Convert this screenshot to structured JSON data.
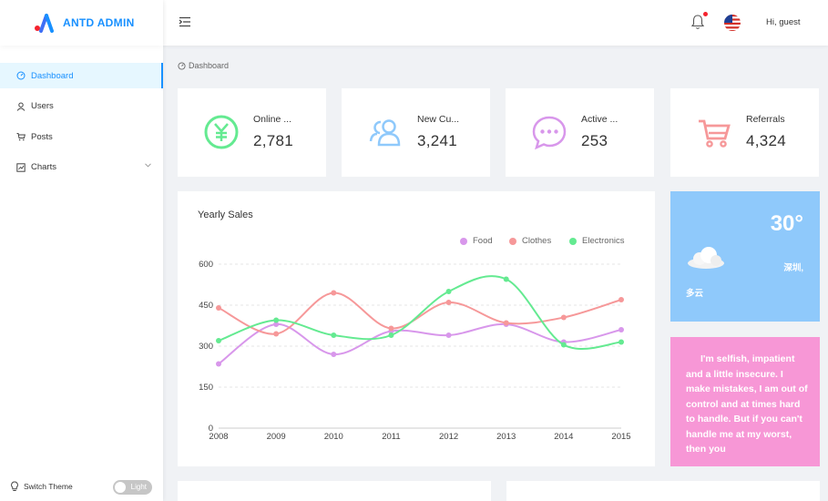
{
  "app": {
    "logo_text": "ANTD ADMIN"
  },
  "sidebar": {
    "items": [
      {
        "label": "Dashboard",
        "icon": "dashboard-icon",
        "active": true
      },
      {
        "label": "Users",
        "icon": "user-icon"
      },
      {
        "label": "Posts",
        "icon": "shopping-cart-icon"
      },
      {
        "label": "Charts",
        "icon": "chart-icon",
        "has_submenu": true
      }
    ],
    "footer": {
      "label": "Switch Theme",
      "toggle_label": "Light"
    }
  },
  "header": {
    "greeting": "Hi, guest",
    "notification_badge": true,
    "language_flag": "us-flag-icon"
  },
  "breadcrumb": {
    "label": "Dashboard"
  },
  "stats": [
    {
      "title": "Online ...",
      "value": "2,781",
      "icon": "pay-circle-icon",
      "color": "#64ea91"
    },
    {
      "title": "New Cu...",
      "value": "3,241",
      "icon": "team-icon",
      "color": "#8fc9fb"
    },
    {
      "title": "Active ...",
      "value": "253",
      "icon": "message-icon",
      "color": "#d897eb"
    },
    {
      "title": "Referrals",
      "value": "4,324",
      "icon": "shopping-cart-icon",
      "color": "#f69899"
    }
  ],
  "sales": {
    "title": "Yearly Sales",
    "legend": [
      {
        "name": "Food",
        "color": "#d897eb"
      },
      {
        "name": "Clothes",
        "color": "#f69899"
      },
      {
        "name": "Electronics",
        "color": "#64ea91"
      }
    ]
  },
  "chart_data": {
    "type": "line",
    "title": "Yearly Sales",
    "x": [
      "2008",
      "2009",
      "2010",
      "2011",
      "2012",
      "2013",
      "2014",
      "2015"
    ],
    "series": [
      {
        "name": "Food",
        "color": "#d897eb",
        "values": [
          235,
          380,
          270,
          355,
          340,
          380,
          315,
          360
        ]
      },
      {
        "name": "Clothes",
        "color": "#f69899",
        "values": [
          440,
          345,
          495,
          365,
          460,
          385,
          405,
          470
        ]
      },
      {
        "name": "Electronics",
        "color": "#64ea91",
        "values": [
          320,
          395,
          340,
          340,
          500,
          545,
          305,
          315
        ]
      }
    ],
    "yticks": [
      "0",
      "150",
      "300",
      "450",
      "600"
    ],
    "ylim": [
      0,
      600
    ],
    "grid": true,
    "legend_position": "top-right"
  },
  "weather": {
    "temperature": "30°",
    "city": "深圳,",
    "condition": "多云",
    "icon": "cloud-icon"
  },
  "quote": {
    "text": "I'm selfish, impatient and a little insecure. I make mistakes, I am out of control and at times hard to handle. But if you can't handle me at my worst, then you"
  }
}
